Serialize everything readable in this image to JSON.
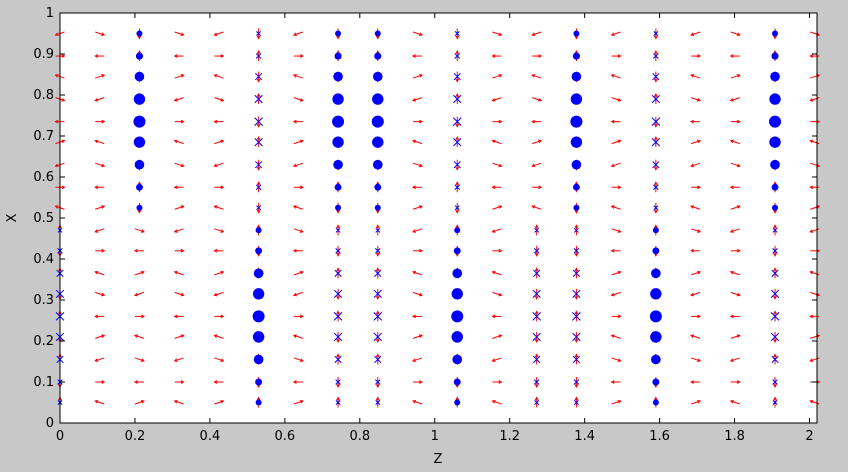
{
  "chart_data": {
    "type": "scatter",
    "title": "",
    "xlabel": "Z",
    "ylabel": "X",
    "xlim": [
      0,
      2.02
    ],
    "ylim": [
      0,
      1
    ],
    "grid": false,
    "x_ticks": [
      "0",
      "0.2",
      "0.4",
      "0.6",
      "0.8",
      "1",
      "1.2",
      "1.4",
      "1.6",
      "1.8",
      "2"
    ],
    "y_ticks": [
      "0",
      "0.1",
      "0.2",
      "0.3",
      "0.4",
      "0.5",
      "0.6",
      "0.7",
      "0.8",
      "0.9",
      "1"
    ],
    "x_tick_values": [
      0,
      0.2,
      0.4,
      0.6,
      0.8,
      1,
      1.2,
      1.4,
      1.6,
      1.8,
      2
    ],
    "y_tick_values": [
      0,
      0.1,
      0.2,
      0.3,
      0.4,
      0.5,
      0.6,
      0.7,
      0.8,
      0.9,
      1
    ],
    "columns_z": [
      0,
      0.106,
      0.212,
      0.318,
      0.424,
      0.53,
      0.636,
      0.742,
      0.848,
      0.954,
      1.06,
      1.166,
      1.272,
      1.378,
      1.484,
      1.59,
      1.696,
      1.802,
      1.908,
      2.014
    ],
    "rows_x": [
      0.05,
      0.1,
      0.155,
      0.21,
      0.26,
      0.315,
      0.365,
      0.42,
      0.47,
      0.525,
      0.575,
      0.63,
      0.685,
      0.735,
      0.79,
      0.845,
      0.895,
      0.95
    ],
    "series": [
      {
        "marker": "circle",
        "color": "#0000ff"
      },
      {
        "marker": "x",
        "color": "#0000ff"
      },
      {
        "marker": "arrow",
        "color": "#ff0000"
      }
    ],
    "top_band_circle_columns": [
      2,
      7,
      8,
      13,
      18
    ],
    "top_band_cross_columns": [
      5,
      10,
      15
    ],
    "bottom_band_circle_columns": [
      5,
      10,
      15
    ],
    "bottom_band_cross_columns": [
      0,
      7,
      8,
      12,
      13,
      18
    ],
    "top_band_x_range": [
      0.525,
      0.95
    ],
    "bottom_band_x_range": [
      0.05,
      0.47
    ]
  }
}
